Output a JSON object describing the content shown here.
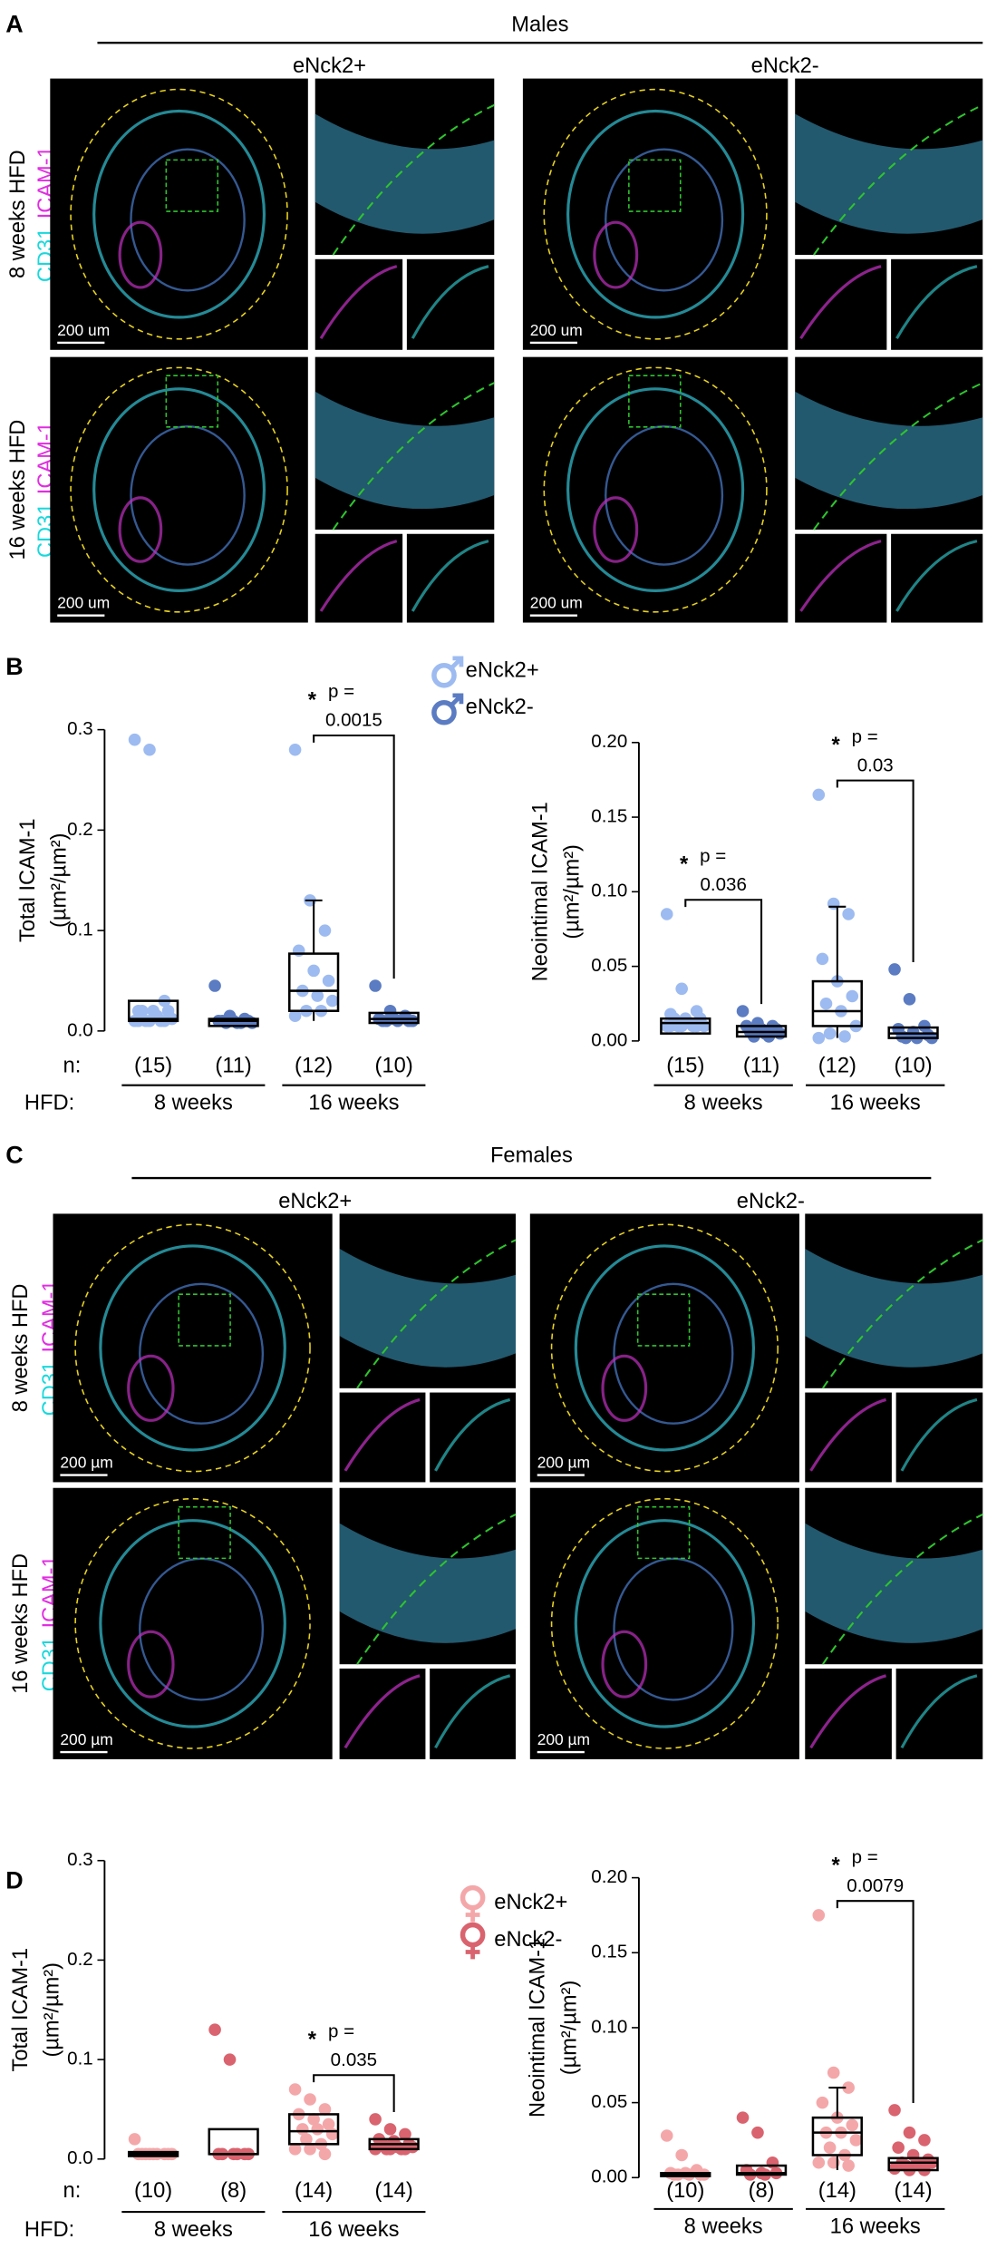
{
  "image_panels": [
    {
      "label": "A",
      "title": "Males",
      "groups": [
        "eNck2+",
        "eNck2-"
      ],
      "rows": [
        "8 weeks HFD",
        "16 weeks HFD"
      ],
      "stains": [
        "CD31",
        "ICAM-1"
      ],
      "scale_bar": "200 um"
    },
    {
      "label": "C",
      "title": "Females",
      "groups": [
        "eNck2+",
        "eNck2-"
      ],
      "rows": [
        "8 weeks HFD",
        "16 weeks HFD"
      ],
      "stains": [
        "CD31",
        "ICAM-1"
      ],
      "scale_bar": "200 µm"
    }
  ],
  "chart_data": [
    {
      "type": "box",
      "panel": "B",
      "ylabel": [
        "Total ICAM-1",
        "(µm²/µm²)"
      ],
      "ylim": [
        0,
        0.3
      ],
      "yticks": [
        {
          "value": 0,
          "label": "0.0"
        },
        0.1,
        0.2,
        0.3
      ],
      "n_label": "n:",
      "hfd_label": "HFD:",
      "categories": [
        "(15)",
        "(11)",
        "(12)",
        "(10)"
      ],
      "colors": [
        "#9dbbf0",
        "#5b7cc2",
        "#9dbbf0",
        "#5b7cc2"
      ],
      "legend": [
        {
          "name": "eNck2+",
          "color": "#9dbbf0"
        },
        {
          "name": "eNck2-",
          "color": "#5b7cc2"
        }
      ],
      "xgroups": [
        {
          "label": "8 weeks"
        },
        {
          "label": "16 weeks",
          "star": "*",
          "p_label": "p =",
          "p_value": "0.0015"
        }
      ],
      "groups": [
        {
          "points": [
            0.29,
            0.28,
            0.03,
            0.02,
            0.02,
            0.02,
            0.02,
            0.015,
            0.012,
            0.01,
            0.01,
            0.01,
            0.01,
            0.01,
            0.01
          ],
          "q1": 0.01,
          "median": 0.012,
          "q3": 0.03
        },
        {
          "points": [
            0.045,
            0.015,
            0.012,
            0.01,
            0.01,
            0.01,
            0.01,
            0.008,
            0.008,
            0.008,
            0.008
          ],
          "q1": 0.005,
          "median": 0.01,
          "q3": 0.012
        },
        {
          "points": [
            0.28,
            0.13,
            0.1,
            0.08,
            0.06,
            0.05,
            0.04,
            0.035,
            0.03,
            0.02,
            0.02,
            0.015
          ],
          "q1": 0.02,
          "median": 0.04,
          "q3": 0.077,
          "whisker": [
            0.01,
            0.13
          ]
        },
        {
          "points": [
            0.045,
            0.02,
            0.015,
            0.012,
            0.012,
            0.01,
            0.01,
            0.01,
            0.01,
            0.01
          ],
          "q1": 0.008,
          "median": 0.012,
          "q3": 0.018
        }
      ]
    },
    {
      "type": "box",
      "ylabel": [
        "Neointimal ICAM-1",
        "(µm²/µm²)"
      ],
      "ylim": [
        0,
        0.2
      ],
      "yticks": [
        {
          "value": 0,
          "label": "0.00"
        },
        0.05,
        {
          "value": 0.1,
          "label": "0.10"
        },
        0.15,
        {
          "value": 0.2,
          "label": "0.20"
        }
      ],
      "categories": [
        "(15)",
        "(11)",
        "(12)",
        "(10)"
      ],
      "colors": [
        "#9dbbf0",
        "#5b7cc2",
        "#9dbbf0",
        "#5b7cc2"
      ],
      "xgroups": [
        {
          "label": "8 weeks",
          "star": "*",
          "p_label": "p =",
          "p_value": "0.036"
        },
        {
          "label": "16 weeks",
          "star": "*",
          "p_label": "p =",
          "p_value": "0.03"
        }
      ],
      "groups": [
        {
          "points": [
            0.085,
            0.035,
            0.02,
            0.018,
            0.015,
            0.015,
            0.015,
            0.012,
            0.01,
            0.01,
            0.01,
            0.01,
            0.01,
            0.01,
            0.01
          ],
          "q1": 0.005,
          "median": 0.012,
          "q3": 0.015
        },
        {
          "points": [
            0.02,
            0.012,
            0.01,
            0.01,
            0.008,
            0.008,
            0.006,
            0.005,
            0.005,
            0.003,
            0.003
          ],
          "q1": 0.003,
          "median": 0.006,
          "q3": 0.01
        },
        {
          "points": [
            0.165,
            0.092,
            0.085,
            0.055,
            0.04,
            0.03,
            0.025,
            0.02,
            0.01,
            0.005,
            0.003,
            0.002
          ],
          "q1": 0.01,
          "median": 0.02,
          "q3": 0.04,
          "whisker": [
            0.002,
            0.09
          ]
        },
        {
          "points": [
            0.048,
            0.028,
            0.01,
            0.008,
            0.006,
            0.004,
            0.003,
            0.002,
            0.002,
            0.002
          ],
          "q1": 0.002,
          "median": 0.005,
          "q3": 0.009
        }
      ]
    },
    {
      "type": "box",
      "panel": "D",
      "ylabel": [
        "Total ICAM-1",
        "(µm²/µm²)"
      ],
      "ylim": [
        0,
        0.3
      ],
      "yticks": [
        {
          "value": 0,
          "label": "0.0"
        },
        0.1,
        0.2,
        0.3
      ],
      "n_label": "n:",
      "hfd_label": "HFD:",
      "categories": [
        "(10)",
        "(8)",
        "(14)",
        "(14)"
      ],
      "colors": [
        "#f4a7a9",
        "#d9636e",
        "#f4a7a9",
        "#d9636e"
      ],
      "legend": [
        {
          "name": "eNck2+",
          "color": "#f4a7a9"
        },
        {
          "name": "eNck2-",
          "color": "#d9636e"
        }
      ],
      "xgroups": [
        {
          "label": "8 weeks"
        },
        {
          "label": "16 weeks",
          "star": "*",
          "p_label": "p =",
          "p_value": "0.035"
        }
      ],
      "groups": [
        {
          "points": [
            0.02,
            0.005,
            0.005,
            0.005,
            0.005,
            0.005,
            0.005,
            0.005,
            0.005,
            0.005
          ],
          "q1": 0.003,
          "median": 0.005,
          "q3": 0.007
        },
        {
          "points": [
            0.13,
            0.1,
            0.005,
            0.005,
            0.005,
            0.005,
            0.005,
            0.005
          ],
          "q1": 0.005,
          "median": 0.005,
          "q3": 0.03
        },
        {
          "points": [
            0.07,
            0.06,
            0.05,
            0.045,
            0.04,
            0.035,
            0.03,
            0.03,
            0.025,
            0.02,
            0.015,
            0.01,
            0.01,
            0.005
          ],
          "q1": 0.015,
          "median": 0.028,
          "q3": 0.045
        },
        {
          "points": [
            0.04,
            0.03,
            0.025,
            0.02,
            0.018,
            0.015,
            0.015,
            0.012,
            0.012,
            0.01,
            0.01,
            0.01,
            0.01,
            0.01
          ],
          "q1": 0.01,
          "median": 0.015,
          "q3": 0.02
        }
      ]
    },
    {
      "type": "box",
      "ylabel": [
        "Neointimal ICAM-1",
        "(µm²/µm²)"
      ],
      "ylim": [
        0,
        0.2
      ],
      "yticks": [
        {
          "value": 0,
          "label": "0.00"
        },
        0.05,
        {
          "value": 0.1,
          "label": "0.10"
        },
        0.15,
        {
          "value": 0.2,
          "label": "0.20"
        }
      ],
      "categories": [
        "(10)",
        "(8)",
        "(14)",
        "(14)"
      ],
      "colors": [
        "#f4a7a9",
        "#d9636e",
        "#f4a7a9",
        "#d9636e"
      ],
      "xgroups": [
        {
          "label": "8 weeks"
        },
        {
          "label": "16 weeks",
          "star": "*",
          "p_label": "p =",
          "p_value": "0.0079"
        }
      ],
      "groups": [
        {
          "points": [
            0.028,
            0.015,
            0.005,
            0.003,
            0.003,
            0.002,
            0.002,
            0.002,
            0.002,
            0.002
          ],
          "q1": 0.001,
          "median": 0.002,
          "q3": 0.003
        },
        {
          "points": [
            0.04,
            0.03,
            0.01,
            0.005,
            0.003,
            0.003,
            0.002,
            0.002
          ],
          "q1": 0.002,
          "median": 0.003,
          "q3": 0.008
        },
        {
          "points": [
            0.175,
            0.07,
            0.06,
            0.05,
            0.04,
            0.035,
            0.03,
            0.03,
            0.025,
            0.02,
            0.015,
            0.01,
            0.01,
            0.008
          ],
          "q1": 0.015,
          "median": 0.03,
          "q3": 0.04,
          "whisker": [
            0.005,
            0.06
          ]
        },
        {
          "points": [
            0.045,
            0.03,
            0.025,
            0.02,
            0.015,
            0.012,
            0.01,
            0.01,
            0.01,
            0.008,
            0.008,
            0.006,
            0.005,
            0.005
          ],
          "q1": 0.005,
          "median": 0.01,
          "q3": 0.013
        }
      ]
    }
  ]
}
